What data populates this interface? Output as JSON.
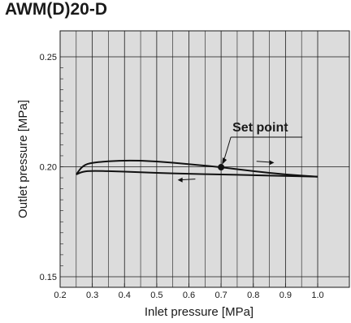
{
  "chart_data": {
    "type": "line",
    "title": "AWM(D)20-D",
    "xlabel": "Inlet pressure [MPa]",
    "ylabel": "Outlet pressure [MPa]",
    "xlim": [
      0.2,
      1.0
    ],
    "ylim": [
      0.15,
      0.25
    ],
    "x_ticks": [
      "0.2",
      "0.3",
      "0.4",
      "0.5",
      "0.6",
      "0.7",
      "0.8",
      "0.9",
      "1.0"
    ],
    "y_ticks": [
      "0.15",
      "0.20",
      "0.25"
    ],
    "grid": true,
    "series": [
      {
        "values_x": [
          0.25,
          0.27,
          0.3,
          0.4,
          0.5,
          0.6,
          0.7,
          0.8,
          0.9,
          1.0
        ],
        "values_y": [
          0.1965,
          0.2005,
          0.202,
          0.203,
          0.2025,
          0.2012,
          0.1998,
          0.198,
          0.1965,
          0.1955
        ]
      },
      {
        "values_x": [
          1.0,
          0.9,
          0.8,
          0.7,
          0.6,
          0.5,
          0.4,
          0.3,
          0.27,
          0.25
        ],
        "values_y": [
          0.1955,
          0.1958,
          0.1962,
          0.1965,
          0.1968,
          0.1972,
          0.1978,
          0.1982,
          0.1978,
          0.1965
        ]
      }
    ],
    "annotations": [
      {
        "text": "Set point",
        "x": 0.7,
        "y": 0.1998
      }
    ],
    "direction_arrows": [
      "right",
      "left"
    ]
  }
}
